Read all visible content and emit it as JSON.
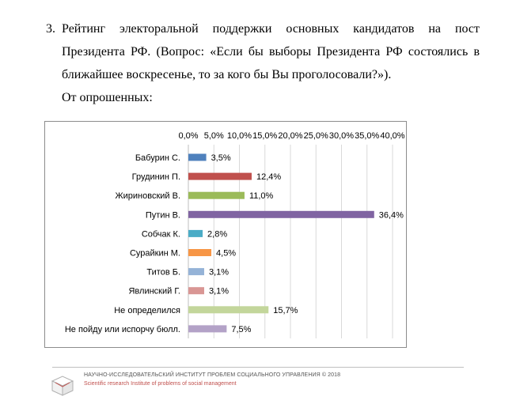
{
  "question": {
    "number": "3.",
    "text": "Рейтинг электоральной поддержки основных кандидатов на пост Президента РФ. (Вопрос: «Если бы выборы Президента РФ состоялись в ближайшее воскресенье, то за кого бы Вы проголосовали?»).",
    "subtitle": "От опрошенных:"
  },
  "footer": {
    "org_ru": "НАУЧНО-ИССЛЕДОВАТЕЛЬСКИЙ ИНСТИТУТ ПРОБЛЕМ СОЦИАЛЬНОГО УПРАВЛЕНИЯ © 2018",
    "org_en": "Scientific research Institute of problems of social management"
  },
  "chart_data": {
    "type": "bar",
    "orientation": "horizontal",
    "xlim": [
      0,
      40
    ],
    "ticks": [
      "0,0%",
      "5,0%",
      "10,0%",
      "15,0%",
      "20,0%",
      "25,0%",
      "30,0%",
      "35,0%",
      "40,0%"
    ],
    "grid": true,
    "legend": "none",
    "categories": [
      "Бабурин С.",
      "Грудинин П.",
      "Жириновский В.",
      "Путин В.",
      "Собчак К.",
      "Сурайкин М.",
      "Титов Б.",
      "Явлинский Г.",
      "Не определился",
      "Не пойду или испорчу бюлл."
    ],
    "values": [
      3.5,
      12.4,
      11.0,
      36.4,
      2.8,
      4.5,
      3.1,
      3.1,
      15.7,
      7.5
    ],
    "value_labels": [
      "3,5%",
      "12,4%",
      "11,0%",
      "36,4%",
      "2,8%",
      "4,5%",
      "3,1%",
      "3,1%",
      "15,7%",
      "7,5%"
    ],
    "colors": [
      "#4f81bd",
      "#c0504d",
      "#9bbb59",
      "#8064a2",
      "#4bacc6",
      "#f79646",
      "#95b3d7",
      "#d99694",
      "#c3d69b",
      "#b3a2c7"
    ]
  }
}
